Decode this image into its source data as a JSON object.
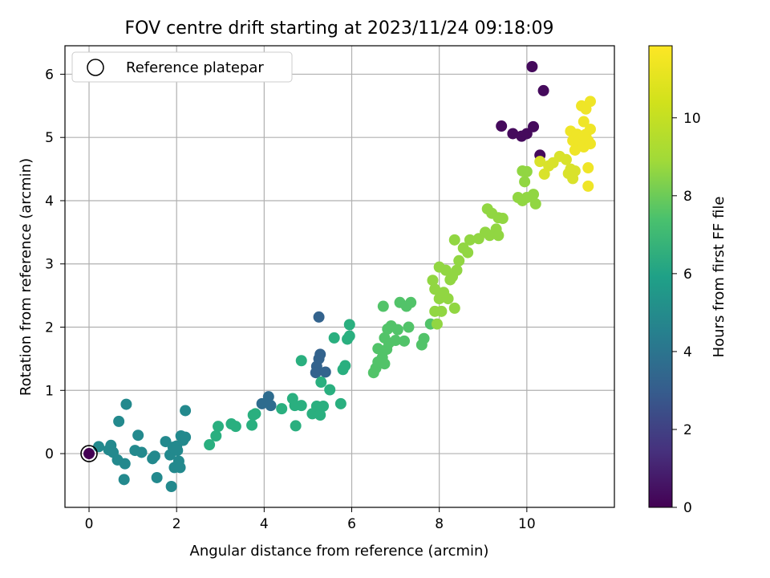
{
  "chart_data": {
    "type": "scatter",
    "title": "FOV centre drift starting at 2023/11/24 09:18:09",
    "xlabel": "Angular distance from reference (arcmin)",
    "ylabel": "Rotation from reference (arcmin)",
    "xlim": [
      -0.55,
      12.0
    ],
    "ylim": [
      -0.85,
      6.45
    ],
    "xticks": [
      0,
      2,
      4,
      6,
      8,
      10
    ],
    "yticks": [
      0,
      1,
      2,
      3,
      4,
      5,
      6
    ],
    "grid": true,
    "colorbar": {
      "label": "Hours from first FF file",
      "colormap": "viridis",
      "range": [
        0,
        11.85
      ],
      "ticks": [
        0,
        2,
        4,
        6,
        8,
        10
      ]
    },
    "legend": {
      "location": "top-left",
      "entries": [
        "Reference platepar"
      ]
    },
    "reference": {
      "x": 0,
      "y": 0
    },
    "points": [
      {
        "x": 0,
        "y": 0,
        "c": 0.0
      },
      {
        "x": 10.12,
        "y": 6.12,
        "c": 0.3
      },
      {
        "x": 10.38,
        "y": 5.74,
        "c": 0.3
      },
      {
        "x": 9.42,
        "y": 5.18,
        "c": 0.3
      },
      {
        "x": 9.68,
        "y": 5.06,
        "c": 0.3
      },
      {
        "x": 9.88,
        "y": 5.02,
        "c": 0.3
      },
      {
        "x": 10.0,
        "y": 5.06,
        "c": 0.3
      },
      {
        "x": 10.15,
        "y": 5.17,
        "c": 0.3
      },
      {
        "x": 10.3,
        "y": 4.72,
        "c": 0.3
      },
      {
        "x": 5.25,
        "y": 2.16,
        "c": 3.8
      },
      {
        "x": 5.28,
        "y": 1.57,
        "c": 3.8
      },
      {
        "x": 5.25,
        "y": 1.5,
        "c": 3.8
      },
      {
        "x": 5.2,
        "y": 1.38,
        "c": 3.8
      },
      {
        "x": 5.18,
        "y": 1.28,
        "c": 3.8
      },
      {
        "x": 5.4,
        "y": 1.29,
        "c": 3.8
      },
      {
        "x": 3.95,
        "y": 0.79,
        "c": 4.2
      },
      {
        "x": 4.1,
        "y": 0.9,
        "c": 4.2
      },
      {
        "x": 4.15,
        "y": 0.76,
        "c": 4.2
      },
      {
        "x": 0.22,
        "y": 0.11,
        "c": 5.6
      },
      {
        "x": 0.45,
        "y": 0.06,
        "c": 5.6
      },
      {
        "x": 0.5,
        "y": 0.13,
        "c": 5.6
      },
      {
        "x": 0.55,
        "y": 0.02,
        "c": 5.6
      },
      {
        "x": 0.65,
        "y": -0.1,
        "c": 5.6
      },
      {
        "x": 0.68,
        "y": 0.51,
        "c": 5.6
      },
      {
        "x": 0.8,
        "y": -0.41,
        "c": 5.6
      },
      {
        "x": 0.82,
        "y": -0.16,
        "c": 5.6
      },
      {
        "x": 0.85,
        "y": 0.78,
        "c": 5.6
      },
      {
        "x": 1.05,
        "y": 0.05,
        "c": 5.6
      },
      {
        "x": 1.12,
        "y": 0.29,
        "c": 5.6
      },
      {
        "x": 1.2,
        "y": 0.02,
        "c": 5.6
      },
      {
        "x": 1.45,
        "y": -0.08,
        "c": 5.6
      },
      {
        "x": 1.5,
        "y": -0.04,
        "c": 5.6
      },
      {
        "x": 1.55,
        "y": -0.38,
        "c": 5.6
      },
      {
        "x": 1.75,
        "y": 0.19,
        "c": 5.6
      },
      {
        "x": 1.85,
        "y": -0.02,
        "c": 5.6
      },
      {
        "x": 1.88,
        "y": -0.52,
        "c": 5.6
      },
      {
        "x": 1.92,
        "y": 0.1,
        "c": 5.6
      },
      {
        "x": 1.95,
        "y": -0.22,
        "c": 5.6
      },
      {
        "x": 2.0,
        "y": 0.12,
        "c": 5.6
      },
      {
        "x": 2.02,
        "y": 0.05,
        "c": 5.6
      },
      {
        "x": 2.05,
        "y": -0.12,
        "c": 5.6
      },
      {
        "x": 2.08,
        "y": -0.22,
        "c": 5.6
      },
      {
        "x": 2.1,
        "y": 0.28,
        "c": 5.6
      },
      {
        "x": 2.15,
        "y": 0.21,
        "c": 5.6
      },
      {
        "x": 2.2,
        "y": 0.26,
        "c": 5.6
      },
      {
        "x": 2.2,
        "y": 0.68,
        "c": 5.6
      },
      {
        "x": 2.75,
        "y": 0.14,
        "c": 7.5
      },
      {
        "x": 2.9,
        "y": 0.28,
        "c": 7.5
      },
      {
        "x": 2.95,
        "y": 0.43,
        "c": 7.5
      },
      {
        "x": 3.25,
        "y": 0.47,
        "c": 7.5
      },
      {
        "x": 3.35,
        "y": 0.43,
        "c": 7.5
      },
      {
        "x": 3.72,
        "y": 0.45,
        "c": 7.5
      },
      {
        "x": 3.75,
        "y": 0.61,
        "c": 7.5
      },
      {
        "x": 3.8,
        "y": 0.63,
        "c": 7.5
      },
      {
        "x": 4.4,
        "y": 0.71,
        "c": 7.5
      },
      {
        "x": 4.65,
        "y": 0.87,
        "c": 7.5
      },
      {
        "x": 4.7,
        "y": 0.76,
        "c": 7.5
      },
      {
        "x": 4.72,
        "y": 0.44,
        "c": 7.5
      },
      {
        "x": 4.85,
        "y": 1.47,
        "c": 7.5
      },
      {
        "x": 4.85,
        "y": 0.76,
        "c": 7.5
      },
      {
        "x": 5.1,
        "y": 0.63,
        "c": 7.5
      },
      {
        "x": 5.2,
        "y": 0.75,
        "c": 7.5
      },
      {
        "x": 5.28,
        "y": 0.61,
        "c": 7.5
      },
      {
        "x": 5.3,
        "y": 1.13,
        "c": 7.5
      },
      {
        "x": 5.35,
        "y": 0.75,
        "c": 7.5
      },
      {
        "x": 5.5,
        "y": 1.01,
        "c": 7.5
      },
      {
        "x": 5.6,
        "y": 1.83,
        "c": 7.5
      },
      {
        "x": 5.75,
        "y": 0.79,
        "c": 7.5
      },
      {
        "x": 5.8,
        "y": 1.33,
        "c": 7.5
      },
      {
        "x": 5.85,
        "y": 1.39,
        "c": 7.5
      },
      {
        "x": 5.9,
        "y": 1.81,
        "c": 7.5
      },
      {
        "x": 5.95,
        "y": 1.86,
        "c": 7.5
      },
      {
        "x": 5.95,
        "y": 2.04,
        "c": 7.5
      },
      {
        "x": 6.5,
        "y": 1.28,
        "c": 8.6
      },
      {
        "x": 6.55,
        "y": 1.35,
        "c": 8.6
      },
      {
        "x": 6.6,
        "y": 1.45,
        "c": 8.6
      },
      {
        "x": 6.6,
        "y": 1.66,
        "c": 8.6
      },
      {
        "x": 6.7,
        "y": 1.52,
        "c": 8.6
      },
      {
        "x": 6.72,
        "y": 2.33,
        "c": 8.6
      },
      {
        "x": 6.75,
        "y": 1.83,
        "c": 8.6
      },
      {
        "x": 6.75,
        "y": 1.42,
        "c": 8.6
      },
      {
        "x": 6.8,
        "y": 1.65,
        "c": 8.6
      },
      {
        "x": 6.82,
        "y": 1.97,
        "c": 8.6
      },
      {
        "x": 6.85,
        "y": 1.75,
        "c": 8.6
      },
      {
        "x": 6.9,
        "y": 2.02,
        "c": 8.6
      },
      {
        "x": 7.0,
        "y": 1.79,
        "c": 8.6
      },
      {
        "x": 7.05,
        "y": 1.96,
        "c": 8.6
      },
      {
        "x": 7.1,
        "y": 2.39,
        "c": 8.6
      },
      {
        "x": 7.2,
        "y": 1.78,
        "c": 8.6
      },
      {
        "x": 7.25,
        "y": 2.33,
        "c": 8.6
      },
      {
        "x": 7.3,
        "y": 2.0,
        "c": 8.6
      },
      {
        "x": 7.35,
        "y": 2.39,
        "c": 8.6
      },
      {
        "x": 7.6,
        "y": 1.72,
        "c": 8.6
      },
      {
        "x": 7.65,
        "y": 1.82,
        "c": 8.6
      },
      {
        "x": 7.8,
        "y": 2.05,
        "c": 8.6
      },
      {
        "x": 7.85,
        "y": 2.74,
        "c": 9.9
      },
      {
        "x": 7.9,
        "y": 2.6,
        "c": 9.9
      },
      {
        "x": 7.9,
        "y": 2.25,
        "c": 9.9
      },
      {
        "x": 7.95,
        "y": 2.05,
        "c": 9.9
      },
      {
        "x": 8.0,
        "y": 2.95,
        "c": 9.9
      },
      {
        "x": 8.0,
        "y": 2.45,
        "c": 9.9
      },
      {
        "x": 8.05,
        "y": 2.25,
        "c": 9.9
      },
      {
        "x": 8.1,
        "y": 2.55,
        "c": 9.9
      },
      {
        "x": 8.15,
        "y": 2.9,
        "c": 9.9
      },
      {
        "x": 8.2,
        "y": 2.45,
        "c": 9.9
      },
      {
        "x": 8.25,
        "y": 2.75,
        "c": 9.9
      },
      {
        "x": 8.3,
        "y": 2.8,
        "c": 9.9
      },
      {
        "x": 8.35,
        "y": 3.38,
        "c": 9.9
      },
      {
        "x": 8.35,
        "y": 2.3,
        "c": 9.9
      },
      {
        "x": 8.4,
        "y": 2.9,
        "c": 9.9
      },
      {
        "x": 8.45,
        "y": 3.05,
        "c": 9.9
      },
      {
        "x": 8.55,
        "y": 3.25,
        "c": 9.9
      },
      {
        "x": 8.65,
        "y": 3.18,
        "c": 9.9
      },
      {
        "x": 8.7,
        "y": 3.38,
        "c": 9.9
      },
      {
        "x": 8.9,
        "y": 3.4,
        "c": 9.9
      },
      {
        "x": 9.05,
        "y": 3.5,
        "c": 9.9
      },
      {
        "x": 9.1,
        "y": 3.87,
        "c": 9.9
      },
      {
        "x": 9.15,
        "y": 3.45,
        "c": 9.9
      },
      {
        "x": 9.2,
        "y": 3.8,
        "c": 9.9
      },
      {
        "x": 9.3,
        "y": 3.55,
        "c": 9.9
      },
      {
        "x": 9.35,
        "y": 3.73,
        "c": 9.9
      },
      {
        "x": 9.35,
        "y": 3.45,
        "c": 9.9
      },
      {
        "x": 9.45,
        "y": 3.72,
        "c": 9.9
      },
      {
        "x": 9.8,
        "y": 4.05,
        "c": 9.9
      },
      {
        "x": 9.9,
        "y": 4.0,
        "c": 9.9
      },
      {
        "x": 9.95,
        "y": 4.3,
        "c": 9.9
      },
      {
        "x": 10.0,
        "y": 4.05,
        "c": 9.9
      },
      {
        "x": 10.15,
        "y": 4.1,
        "c": 9.9
      },
      {
        "x": 10.2,
        "y": 3.95,
        "c": 9.9
      },
      {
        "x": 9.9,
        "y": 4.47,
        "c": 9.9
      },
      {
        "x": 10.0,
        "y": 4.46,
        "c": 9.9
      },
      {
        "x": 10.3,
        "y": 4.62,
        "c": 11.2
      },
      {
        "x": 10.4,
        "y": 4.42,
        "c": 11.2
      },
      {
        "x": 10.5,
        "y": 4.55,
        "c": 11.2
      },
      {
        "x": 10.6,
        "y": 4.6,
        "c": 11.2
      },
      {
        "x": 10.75,
        "y": 4.7,
        "c": 11.2
      },
      {
        "x": 10.9,
        "y": 4.65,
        "c": 11.2
      },
      {
        "x": 10.95,
        "y": 4.43,
        "c": 11.2
      },
      {
        "x": 11.0,
        "y": 4.5,
        "c": 11.2
      },
      {
        "x": 11.05,
        "y": 4.35,
        "c": 11.2
      },
      {
        "x": 11.1,
        "y": 4.47,
        "c": 11.2
      },
      {
        "x": 11.0,
        "y": 5.1,
        "c": 11.6
      },
      {
        "x": 11.05,
        "y": 4.95,
        "c": 11.6
      },
      {
        "x": 11.1,
        "y": 4.8,
        "c": 11.6
      },
      {
        "x": 11.15,
        "y": 5.05,
        "c": 11.6
      },
      {
        "x": 11.2,
        "y": 4.9,
        "c": 11.6
      },
      {
        "x": 11.25,
        "y": 5.0,
        "c": 11.6
      },
      {
        "x": 11.3,
        "y": 4.85,
        "c": 11.6
      },
      {
        "x": 11.25,
        "y": 5.5,
        "c": 11.6
      },
      {
        "x": 11.3,
        "y": 5.25,
        "c": 11.6
      },
      {
        "x": 11.35,
        "y": 5.45,
        "c": 11.6
      },
      {
        "x": 11.35,
        "y": 5.05,
        "c": 11.6
      },
      {
        "x": 11.4,
        "y": 4.95,
        "c": 11.6
      },
      {
        "x": 11.45,
        "y": 5.13,
        "c": 11.6
      },
      {
        "x": 11.45,
        "y": 4.9,
        "c": 11.6
      },
      {
        "x": 11.45,
        "y": 5.57,
        "c": 11.6
      },
      {
        "x": 11.4,
        "y": 4.52,
        "c": 11.6
      },
      {
        "x": 11.4,
        "y": 4.23,
        "c": 11.6
      },
      {
        "x": 11.2,
        "y": 4.95,
        "c": 11.6
      },
      {
        "x": 11.3,
        "y": 5.03,
        "c": 11.6
      }
    ]
  }
}
